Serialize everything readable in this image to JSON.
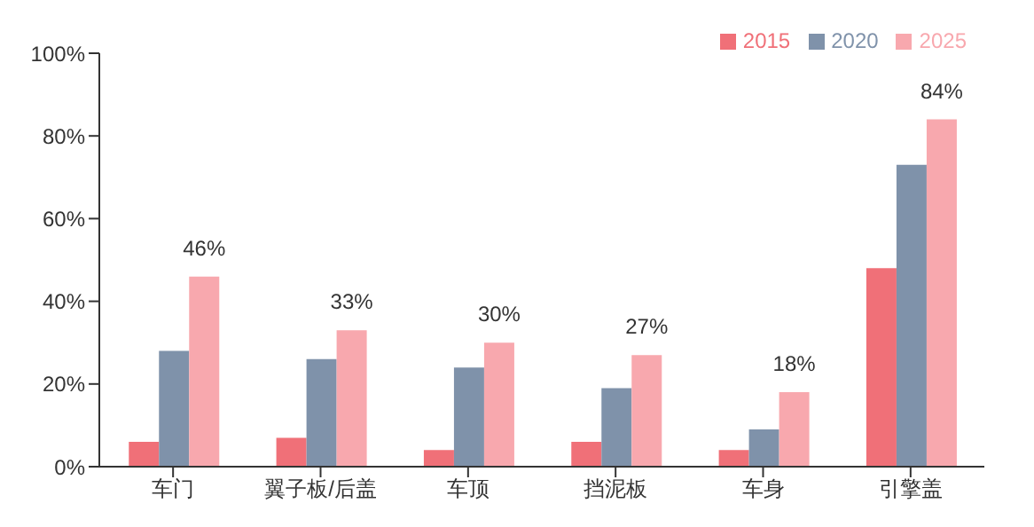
{
  "chart_data": {
    "type": "bar",
    "categories": [
      "车门",
      "翼子板/后盖",
      "车顶",
      "挡泥板",
      "车身",
      "引擎盖"
    ],
    "series": [
      {
        "name": "2015",
        "color": "#f07078",
        "values": [
          6,
          7,
          4,
          6,
          4,
          48
        ]
      },
      {
        "name": "2020",
        "color": "#7f92aa",
        "values": [
          28,
          26,
          24,
          19,
          9,
          73
        ]
      },
      {
        "name": "2025",
        "color": "#f8a8ae",
        "values": [
          46,
          33,
          30,
          27,
          18,
          84
        ],
        "value_labels": [
          "46%",
          "33%",
          "30%",
          "27%",
          "18%",
          "84%"
        ]
      }
    ],
    "ylim": [
      0,
      100
    ],
    "yticks": [
      {
        "value": 0,
        "label": "0%"
      },
      {
        "value": 20,
        "label": "20%"
      },
      {
        "value": 40,
        "label": "40%"
      },
      {
        "value": 60,
        "label": "60%"
      },
      {
        "value": 80,
        "label": "80%"
      },
      {
        "value": 100,
        "label": "100%"
      }
    ],
    "grid": false,
    "legend": "top"
  }
}
